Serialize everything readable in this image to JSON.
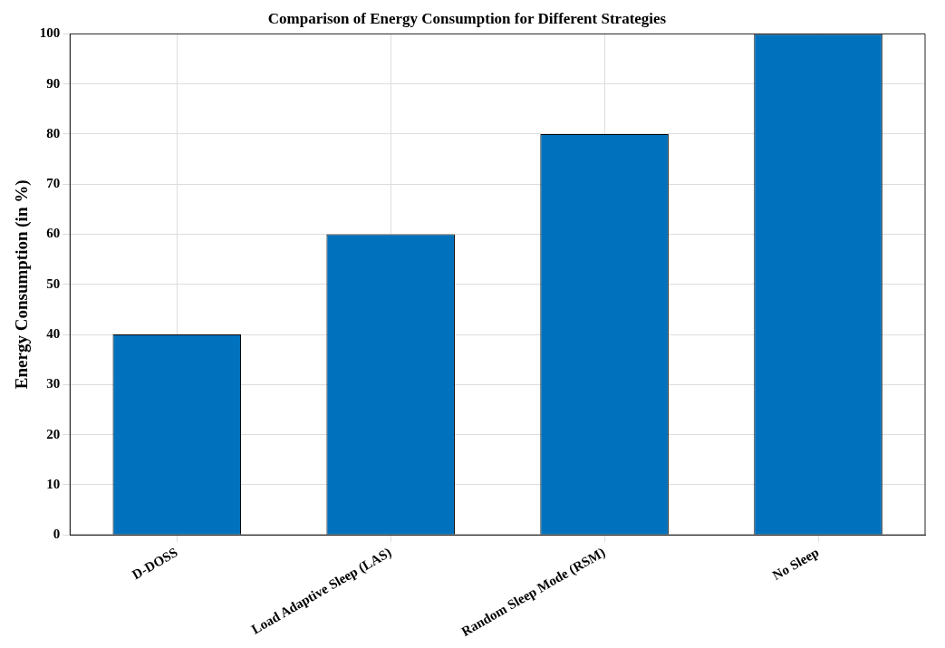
{
  "chart_data": {
    "type": "bar",
    "title": "Comparison of Energy Consumption for Different Strategies",
    "ylabel": "Energy Consumption (in %)",
    "categories": [
      "D-DOSS",
      "Load Adaptive Sleep (LAS)",
      "Random Sleep Mode (RSM)",
      "No Sleep"
    ],
    "values": [
      40,
      60,
      80,
      100
    ],
    "color": "#0072bd",
    "ylim": [
      0,
      100
    ],
    "yticks": [
      0,
      10,
      20,
      30,
      40,
      50,
      60,
      70,
      80,
      90,
      100
    ],
    "grid": true
  }
}
